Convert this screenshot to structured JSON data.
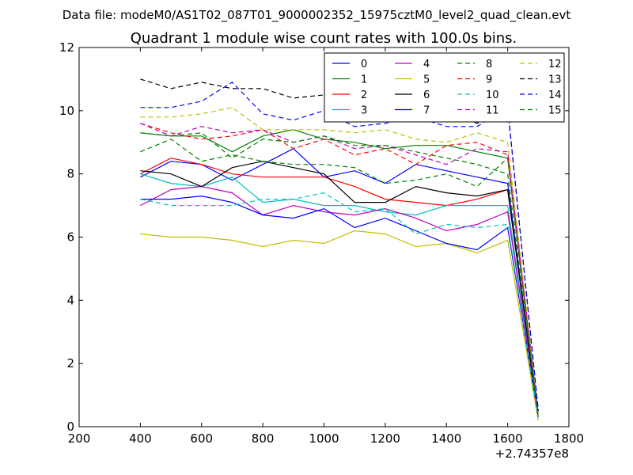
{
  "chart_data": {
    "type": "line",
    "suptitle": "Data file: modeM0/AS1T02_087T01_9000002352_15975cztM0_level2_quad_clean.evt",
    "title": "Quadrant 1 module wise count rates with 100.0s bins.",
    "xlabel": "",
    "ylabel": "",
    "x_offset_label": "+2.74357e8",
    "xlim": [
      200,
      1800
    ],
    "ylim": [
      0,
      12
    ],
    "xticks": [
      "200",
      "400",
      "600",
      "800",
      "1000",
      "1200",
      "1400",
      "1600",
      "1800"
    ],
    "yticks": [
      "0",
      "2",
      "4",
      "6",
      "8",
      "10",
      "12"
    ],
    "grid": false,
    "legend_position": "top-right",
    "legend_columns": 4,
    "x": [
      400,
      500,
      600,
      700,
      800,
      900,
      1000,
      1100,
      1200,
      1300,
      1400,
      1500,
      1600,
      1700
    ],
    "series": [
      {
        "name": "0",
        "color": "#0000ff",
        "dash": "solid",
        "values": [
          7.9,
          8.4,
          8.3,
          7.8,
          8.3,
          8.8,
          7.9,
          8.1,
          7.7,
          8.3,
          8.1,
          7.9,
          7.7,
          0.3
        ]
      },
      {
        "name": "1",
        "color": "#008000",
        "dash": "solid",
        "values": [
          9.3,
          9.2,
          9.2,
          8.7,
          9.2,
          9.4,
          9.1,
          9.0,
          8.8,
          8.9,
          8.9,
          8.7,
          8.5,
          0.3
        ]
      },
      {
        "name": "2",
        "color": "#ff0000",
        "dash": "solid",
        "values": [
          8.0,
          8.5,
          8.3,
          8.0,
          7.9,
          7.9,
          7.9,
          7.6,
          7.2,
          7.1,
          7.0,
          7.2,
          7.5,
          0.3
        ]
      },
      {
        "name": "3",
        "color": "#00bfbf",
        "dash": "solid",
        "values": [
          8.0,
          7.7,
          7.6,
          7.9,
          7.1,
          7.2,
          7.0,
          7.0,
          6.8,
          6.7,
          7.0,
          7.0,
          7.0,
          0.3
        ]
      },
      {
        "name": "4",
        "color": "#bf00bf",
        "dash": "solid",
        "values": [
          7.0,
          7.5,
          7.6,
          7.4,
          6.7,
          7.0,
          6.8,
          6.7,
          6.9,
          6.6,
          6.2,
          6.4,
          6.8,
          0.3
        ]
      },
      {
        "name": "5",
        "color": "#bfbf00",
        "dash": "solid",
        "values": [
          6.1,
          6.0,
          6.0,
          5.9,
          5.7,
          5.9,
          5.8,
          6.2,
          6.1,
          5.7,
          5.8,
          5.5,
          5.9,
          0.2
        ]
      },
      {
        "name": "6",
        "color": "#000000",
        "dash": "solid",
        "values": [
          8.1,
          8.0,
          7.6,
          8.2,
          8.4,
          8.2,
          8.0,
          7.1,
          7.1,
          7.6,
          7.4,
          7.3,
          7.5,
          0.3
        ]
      },
      {
        "name": "7",
        "color": "#0000ff",
        "dash": "solid",
        "values": [
          7.2,
          7.2,
          7.3,
          7.1,
          6.7,
          6.6,
          6.9,
          6.3,
          6.6,
          6.2,
          5.8,
          5.6,
          6.3,
          0.3
        ]
      },
      {
        "name": "8",
        "color": "#008000",
        "dash": "dashed",
        "values": [
          8.7,
          9.1,
          8.4,
          8.6,
          8.4,
          8.3,
          8.3,
          8.2,
          7.7,
          7.8,
          8.0,
          7.6,
          8.5,
          0.3
        ]
      },
      {
        "name": "9",
        "color": "#ff0000",
        "dash": "dashed",
        "values": [
          9.6,
          9.3,
          9.1,
          9.2,
          9.4,
          8.8,
          9.1,
          8.6,
          8.8,
          8.3,
          8.9,
          9.0,
          8.6,
          0.4
        ]
      },
      {
        "name": "10",
        "color": "#00bfbf",
        "dash": "dashed",
        "values": [
          7.2,
          7.0,
          7.0,
          7.0,
          7.2,
          7.2,
          7.4,
          6.8,
          6.9,
          6.1,
          6.4,
          6.3,
          6.4,
          0.3
        ]
      },
      {
        "name": "11",
        "color": "#bf00bf",
        "dash": "dashed",
        "values": [
          9.6,
          9.2,
          9.5,
          9.3,
          9.4,
          9.0,
          9.2,
          8.8,
          8.9,
          8.6,
          8.3,
          8.8,
          8.7,
          0.4
        ]
      },
      {
        "name": "12",
        "color": "#bfbf00",
        "dash": "dashed",
        "values": [
          9.8,
          9.8,
          9.9,
          10.1,
          9.4,
          9.4,
          9.4,
          9.3,
          9.4,
          9.1,
          9.0,
          9.3,
          9.0,
          0.4
        ]
      },
      {
        "name": "13",
        "color": "#000000",
        "dash": "dashed",
        "values": [
          11.0,
          10.7,
          10.9,
          10.7,
          10.7,
          10.4,
          10.5,
          10.3,
          10.3,
          9.7,
          10.0,
          9.6,
          10.1,
          0.5
        ]
      },
      {
        "name": "14",
        "color": "#0000ff",
        "dash": "dashed",
        "values": [
          10.1,
          10.1,
          10.3,
          10.9,
          9.9,
          9.7,
          10.0,
          9.5,
          9.6,
          9.8,
          9.5,
          9.5,
          10.1,
          0.5
        ]
      },
      {
        "name": "15",
        "color": "#008000",
        "dash": "dashed",
        "values": [
          9.3,
          9.2,
          9.3,
          8.5,
          9.1,
          9.0,
          9.2,
          8.9,
          8.9,
          8.7,
          8.5,
          8.3,
          8.0,
          0.3
        ]
      }
    ]
  }
}
